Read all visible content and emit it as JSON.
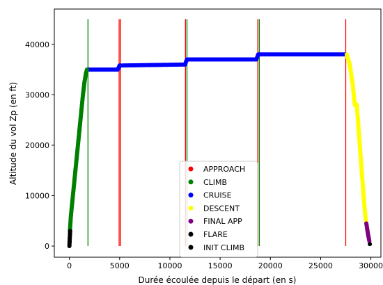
{
  "chart_data": {
    "type": "scatter",
    "xlabel": "Durée écoulée depuis le départ (en s)",
    "ylabel": "Altitude du vol Zp (en ft)",
    "xlim": [
      -1500,
      31000
    ],
    "ylim": [
      -2200,
      47000
    ],
    "xticks": [
      {
        "value": 0,
        "label": "0"
      },
      {
        "value": 5000,
        "label": "5000"
      },
      {
        "value": 10000,
        "label": "10000"
      },
      {
        "value": 15000,
        "label": "15000"
      },
      {
        "value": 20000,
        "label": "20000"
      },
      {
        "value": 25000,
        "label": "25000"
      },
      {
        "value": 30000,
        "label": "30000"
      }
    ],
    "yticks": [
      {
        "value": 0,
        "label": "0"
      },
      {
        "value": 10000,
        "label": "10000"
      },
      {
        "value": 20000,
        "label": "20000"
      },
      {
        "value": 30000,
        "label": "30000"
      },
      {
        "value": 40000,
        "label": "40000"
      }
    ],
    "grid": false,
    "legend_position": "lower-center",
    "colors": {
      "APPROACH": "#ff0000",
      "CLIMB": "#008000",
      "CRUISE": "#0000ff",
      "DESCENT": "#ffff00",
      "FINAL APP": "#800080",
      "FLARE": "#000000",
      "INIT CLIMB": "#000000",
      "red_line": "#ff0000",
      "green_line": "#008000"
    },
    "series": [
      {
        "name": "APPROACH",
        "points": []
      },
      {
        "name": "CLIMB",
        "points": [
          [
            50,
            3000
          ],
          [
            150,
            6000
          ],
          [
            300,
            9000
          ],
          [
            450,
            12000
          ],
          [
            600,
            15000
          ],
          [
            750,
            18000
          ],
          [
            900,
            21000
          ],
          [
            1050,
            24000
          ],
          [
            1200,
            27000
          ],
          [
            1350,
            30000
          ],
          [
            1500,
            32500
          ],
          [
            1650,
            34300
          ],
          [
            1750,
            35000
          ]
        ]
      },
      {
        "name": "CRUISE",
        "points": [
          [
            1900,
            35000
          ],
          [
            4800,
            35000
          ],
          [
            5000,
            35800
          ],
          [
            11500,
            36000
          ],
          [
            11700,
            37000
          ],
          [
            18600,
            37000
          ],
          [
            18800,
            38000
          ],
          [
            27500,
            38000
          ]
        ]
      },
      {
        "name": "DESCENT",
        "points": [
          [
            27600,
            38000
          ],
          [
            27900,
            36000
          ],
          [
            28200,
            32000
          ],
          [
            28400,
            28000
          ],
          [
            28600,
            28000
          ],
          [
            28750,
            24000
          ],
          [
            28900,
            20000
          ],
          [
            29050,
            16000
          ],
          [
            29200,
            12000
          ],
          [
            29350,
            8000
          ],
          [
            29500,
            5000
          ]
        ]
      },
      {
        "name": "FINAL APP",
        "points": [
          [
            29550,
            4500
          ],
          [
            29650,
            3200
          ],
          [
            29750,
            2000
          ],
          [
            29850,
            1000
          ]
        ]
      },
      {
        "name": "FLARE",
        "points": [
          [
            29900,
            400
          ]
        ]
      },
      {
        "name": "INIT CLIMB",
        "points": [
          [
            0,
            0
          ],
          [
            20,
            800
          ],
          [
            40,
            1600
          ],
          [
            60,
            2400
          ],
          [
            80,
            3000
          ]
        ]
      }
    ],
    "vlines": [
      {
        "x": 1850,
        "color": "green_line"
      },
      {
        "x": 4950,
        "color": "red_line"
      },
      {
        "x": 5100,
        "color": "red_line"
      },
      {
        "x": 11550,
        "color": "red_line"
      },
      {
        "x": 11700,
        "color": "green_line"
      },
      {
        "x": 18750,
        "color": "red_line"
      },
      {
        "x": 18900,
        "color": "green_line"
      },
      {
        "x": 27500,
        "color": "red_line"
      }
    ]
  }
}
